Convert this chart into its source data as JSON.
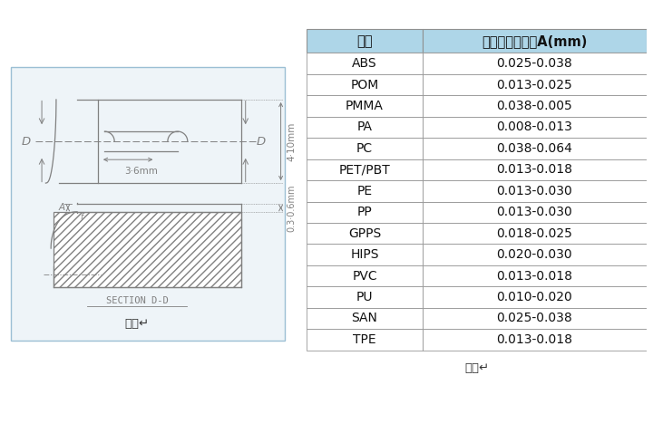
{
  "table_headers": [
    "胶料",
    "排气槽前端尺寸A(mm)"
  ],
  "table_rows": [
    [
      "ABS",
      "0.025-0.038"
    ],
    [
      "POM",
      "0.013-0.025"
    ],
    [
      "PMMA",
      "0.038-0.005"
    ],
    [
      "PA",
      "0.008-0.013"
    ],
    [
      "PC",
      "0.038-0.064"
    ],
    [
      "PET/PBT",
      "0.013-0.018"
    ],
    [
      "PE",
      "0.013-0.030"
    ],
    [
      "PP",
      "0.013-0.030"
    ],
    [
      "GPPS",
      "0.018-0.025"
    ],
    [
      "HIPS",
      "0.020-0.030"
    ],
    [
      "PVC",
      "0.013-0.018"
    ],
    [
      "PU",
      "0.010-0.020"
    ],
    [
      "SAN",
      "0.025-0.038"
    ],
    [
      "TPE",
      "0.013-0.018"
    ]
  ],
  "header_bg": "#aed6e8",
  "border_color": "#888888",
  "header_font_size": 10.5,
  "row_font_size": 10,
  "background_color": "#ffffff",
  "diagram_border_color": "#9bbfd4",
  "diagram_bg": "#eef4f8",
  "line_color": "#808080",
  "label_left": "图一←",
  "label_right": "表一←"
}
